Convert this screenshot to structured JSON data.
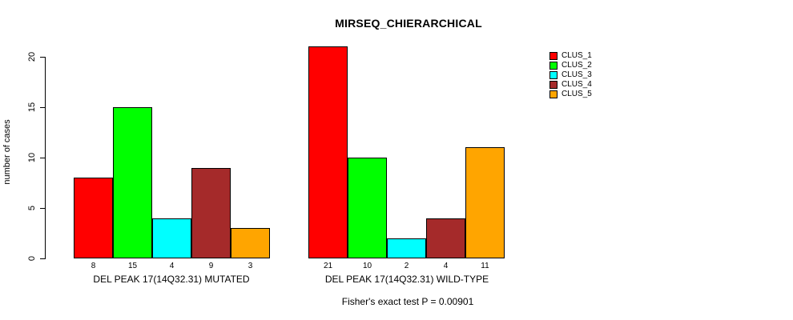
{
  "chart_data": {
    "type": "bar",
    "title": "MIRSEQ_CHIERARCHICAL",
    "ylabel": "number of cases",
    "yticks": [
      0,
      5,
      10,
      15,
      20
    ],
    "ylim": [
      0,
      21
    ],
    "grid": false,
    "legend_position": "top-right",
    "series": [
      {
        "name": "CLUS_1",
        "color": "#FF0000"
      },
      {
        "name": "CLUS_2",
        "color": "#00FF00"
      },
      {
        "name": "CLUS_3",
        "color": "#00FFFF"
      },
      {
        "name": "CLUS_4",
        "color": "#A52A2A"
      },
      {
        "name": "CLUS_5",
        "color": "#FFA500"
      }
    ],
    "groups": [
      {
        "label": "DEL PEAK 17(14Q32.31) MUTATED",
        "values": [
          8,
          15,
          4,
          9,
          3
        ]
      },
      {
        "label": "DEL PEAK 17(14Q32.31) WILD-TYPE",
        "values": [
          21,
          10,
          2,
          4,
          11
        ]
      }
    ],
    "caption": "Fisher's exact test P = 0.00901"
  }
}
